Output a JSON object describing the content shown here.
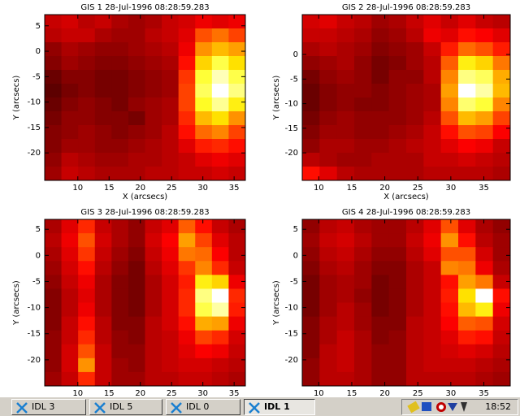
{
  "chart_data": [
    {
      "type": "heatmap",
      "title": "GIS 1 28-Jul-1996 08:28:59.283",
      "xlabel": "X (arcsecs)",
      "ylabel": "Y (arcsecs)",
      "xlim": [
        4.7,
        36.8
      ],
      "ylim": [
        -25.4,
        7.2
      ],
      "xticks": [
        10,
        15,
        20,
        25,
        30,
        35
      ],
      "yticks": [
        5,
        0,
        -5,
        -10,
        -15,
        -20
      ],
      "z": [
        [
          30,
          32,
          28,
          30,
          26,
          24,
          26,
          30,
          32,
          36,
          34,
          36
        ],
        [
          28,
          30,
          30,
          26,
          24,
          24,
          28,
          30,
          34,
          50,
          55,
          48
        ],
        [
          22,
          26,
          24,
          22,
          22,
          24,
          26,
          28,
          36,
          60,
          66,
          62
        ],
        [
          20,
          24,
          22,
          20,
          20,
          22,
          24,
          26,
          40,
          70,
          80,
          72
        ],
        [
          16,
          20,
          20,
          18,
          18,
          20,
          22,
          24,
          46,
          78,
          92,
          80
        ],
        [
          14,
          18,
          20,
          18,
          18,
          20,
          22,
          24,
          48,
          82,
          100,
          86
        ],
        [
          16,
          20,
          22,
          20,
          18,
          22,
          24,
          26,
          48,
          76,
          88,
          74
        ],
        [
          18,
          22,
          22,
          20,
          20,
          18,
          24,
          26,
          44,
          66,
          72,
          60
        ],
        [
          20,
          22,
          24,
          22,
          20,
          22,
          24,
          28,
          40,
          54,
          58,
          48
        ],
        [
          20,
          24,
          24,
          22,
          22,
          24,
          26,
          28,
          34,
          42,
          44,
          40
        ],
        [
          22,
          28,
          26,
          24,
          24,
          26,
          26,
          28,
          30,
          34,
          36,
          34
        ],
        [
          24,
          30,
          28,
          26,
          26,
          26,
          28,
          28,
          30,
          30,
          32,
          30
        ]
      ]
    },
    {
      "type": "heatmap",
      "title": "GIS 2 28-Jul-1996 08:28:59.283",
      "xlabel": "X (arcsecs)",
      "ylabel": "Y (arcsecs)",
      "xlim": [
        7.5,
        39
      ],
      "ylim": [
        -25.6,
        8.1
      ],
      "xticks": [
        10,
        15,
        20,
        25,
        30,
        35
      ],
      "yticks": [
        0,
        -5,
        -10,
        -15,
        -20
      ],
      "z": [
        [
          32,
          34,
          30,
          28,
          24,
          26,
          30,
          34,
          30,
          34,
          30,
          28
        ],
        [
          30,
          30,
          28,
          26,
          22,
          24,
          28,
          36,
          34,
          40,
          38,
          34
        ],
        [
          26,
          28,
          26,
          24,
          20,
          22,
          24,
          30,
          42,
          54,
          50,
          42
        ],
        [
          22,
          24,
          26,
          22,
          18,
          20,
          24,
          28,
          52,
          74,
          70,
          56
        ],
        [
          18,
          22,
          24,
          22,
          18,
          22,
          22,
          28,
          58,
          86,
          82,
          64
        ],
        [
          16,
          20,
          22,
          22,
          20,
          22,
          24,
          26,
          62,
          100,
          90,
          66
        ],
        [
          16,
          20,
          22,
          20,
          20,
          22,
          24,
          26,
          58,
          84,
          78,
          58
        ],
        [
          18,
          22,
          24,
          22,
          22,
          22,
          24,
          28,
          50,
          66,
          62,
          48
        ],
        [
          20,
          24,
          24,
          22,
          22,
          24,
          26,
          30,
          40,
          50,
          48,
          38
        ],
        [
          22,
          26,
          26,
          24,
          24,
          26,
          28,
          30,
          34,
          38,
          36,
          30
        ],
        [
          28,
          26,
          24,
          24,
          26,
          26,
          26,
          30,
          30,
          32,
          30,
          28
        ],
        [
          40,
          34,
          28,
          26,
          26,
          26,
          26,
          28,
          28,
          28,
          28,
          26
        ]
      ]
    },
    {
      "type": "heatmap",
      "title": "GIS 3 28-Jul-1996 08:28:59.283",
      "ylabel": "Y (arcsecs)",
      "xlim": [
        4.7,
        36.8
      ],
      "ylim": [
        -25,
        6.9
      ],
      "xticks": [
        10,
        15,
        20,
        25,
        30,
        35
      ],
      "yticks": [
        5,
        0,
        -5,
        -10,
        -15,
        -20
      ],
      "z": [
        [
          26,
          34,
          44,
          30,
          26,
          22,
          30,
          34,
          52,
          40,
          30,
          26
        ],
        [
          28,
          36,
          50,
          32,
          26,
          22,
          32,
          38,
          62,
          48,
          34,
          28
        ],
        [
          26,
          34,
          46,
          30,
          24,
          20,
          30,
          36,
          56,
          54,
          38,
          28
        ],
        [
          24,
          32,
          40,
          28,
          22,
          18,
          28,
          34,
          46,
          58,
          44,
          30
        ],
        [
          22,
          30,
          36,
          26,
          20,
          18,
          26,
          32,
          42,
          74,
          70,
          36
        ],
        [
          20,
          28,
          34,
          26,
          20,
          18,
          26,
          32,
          44,
          86,
          100,
          44
        ],
        [
          20,
          28,
          36,
          26,
          20,
          18,
          26,
          32,
          44,
          80,
          90,
          42
        ],
        [
          20,
          30,
          40,
          28,
          20,
          20,
          28,
          32,
          40,
          64,
          62,
          36
        ],
        [
          22,
          30,
          44,
          28,
          22,
          20,
          28,
          30,
          36,
          48,
          44,
          32
        ],
        [
          22,
          32,
          50,
          30,
          22,
          22,
          28,
          30,
          34,
          38,
          36,
          30
        ],
        [
          22,
          32,
          60,
          30,
          24,
          22,
          28,
          30,
          32,
          32,
          30,
          28
        ],
        [
          24,
          30,
          44,
          30,
          24,
          24,
          28,
          28,
          30,
          30,
          28,
          26
        ]
      ]
    },
    {
      "type": "heatmap",
      "title": "GIS 4 28-Jul-1996 08:28:59.283",
      "ylabel": "Y (arcsecs)",
      "xlim": [
        7.5,
        39
      ],
      "ylim": [
        -25,
        6.9
      ],
      "xticks": [
        10,
        15,
        20,
        25,
        30,
        35
      ],
      "yticks": [
        5,
        0,
        -5,
        -10,
        -15,
        -20
      ],
      "z": [
        [
          22,
          28,
          30,
          26,
          24,
          24,
          28,
          34,
          50,
          34,
          26,
          22
        ],
        [
          24,
          30,
          32,
          28,
          24,
          24,
          30,
          36,
          60,
          40,
          28,
          24
        ],
        [
          22,
          28,
          30,
          26,
          22,
          22,
          28,
          34,
          50,
          50,
          32,
          24
        ],
        [
          20,
          26,
          28,
          24,
          20,
          20,
          26,
          30,
          58,
          56,
          36,
          26
        ],
        [
          18,
          24,
          26,
          24,
          18,
          20,
          26,
          30,
          40,
          62,
          56,
          30
        ],
        [
          18,
          24,
          26,
          22,
          18,
          20,
          26,
          30,
          42,
          72,
          100,
          40
        ],
        [
          18,
          24,
          28,
          24,
          18,
          20,
          26,
          30,
          40,
          66,
          74,
          36
        ],
        [
          20,
          26,
          28,
          24,
          20,
          20,
          28,
          30,
          38,
          52,
          50,
          32
        ],
        [
          20,
          26,
          30,
          26,
          20,
          22,
          28,
          30,
          34,
          42,
          40,
          30
        ],
        [
          20,
          28,
          30,
          26,
          22,
          22,
          28,
          30,
          32,
          34,
          32,
          28
        ],
        [
          22,
          28,
          30,
          26,
          22,
          22,
          28,
          30,
          30,
          30,
          28,
          26
        ],
        [
          22,
          28,
          28,
          26,
          22,
          22,
          28,
          28,
          28,
          28,
          26,
          24
        ]
      ]
    }
  ],
  "taskbar": {
    "buttons": [
      "IDL 3",
      "IDL 5",
      "IDL 0",
      "IDL 1"
    ],
    "clock": "18:52"
  }
}
